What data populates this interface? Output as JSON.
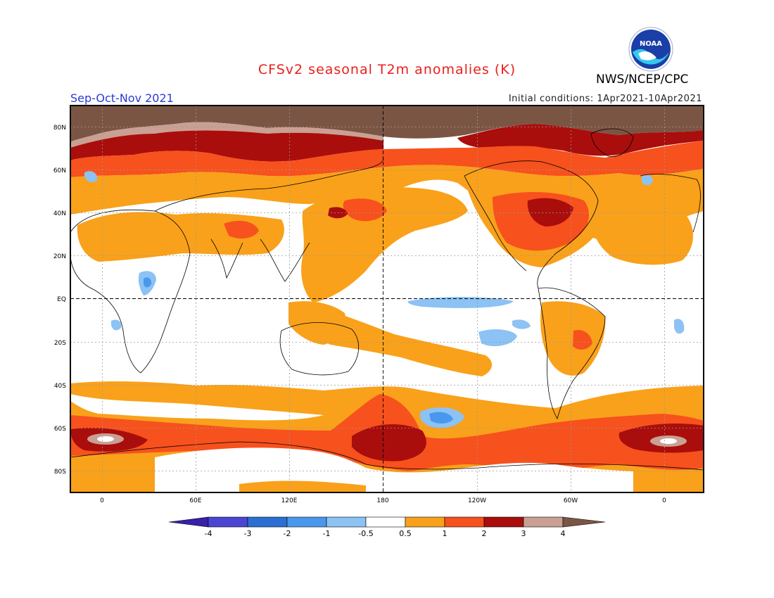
{
  "title": "CFSv2 seasonal T2m anomalies (K)",
  "agency": "NWS/NCEP/CPC",
  "logo_text": "NOAA",
  "season": "Sep-Oct-Nov 2021",
  "initial_conditions": "Initial conditions: 1Apr2021-10Apr2021",
  "lat_labels": [
    "80N",
    "60N",
    "40N",
    "20N",
    "EQ",
    "20S",
    "40S",
    "60S",
    "80S"
  ],
  "lon_labels": [
    "0",
    "60E",
    "120E",
    "180",
    "120W",
    "60W",
    "0"
  ],
  "colorbar": {
    "labels": [
      "-4",
      "-3",
      "-2",
      "-1",
      "-0.5",
      "0.5",
      "1",
      "2",
      "3",
      "4"
    ],
    "colors": [
      "#3a1fa8",
      "#4c45d4",
      "#2c6fd4",
      "#4a98ee",
      "#8cc2f4",
      "#ffffff",
      "#f9a11a",
      "#f7511d",
      "#a90e0c",
      "#c9a093",
      "#7b5544"
    ],
    "under_color": "#3a1fa8",
    "over_color": "#7b5544"
  },
  "colors": {
    "orange": "#f9a11a",
    "red_orange": "#f7511d",
    "dark_red": "#a90e0c",
    "tan": "#c9a093",
    "brown": "#7b5544",
    "light_blue": "#8cc2f4",
    "blue": "#4a98ee"
  }
}
